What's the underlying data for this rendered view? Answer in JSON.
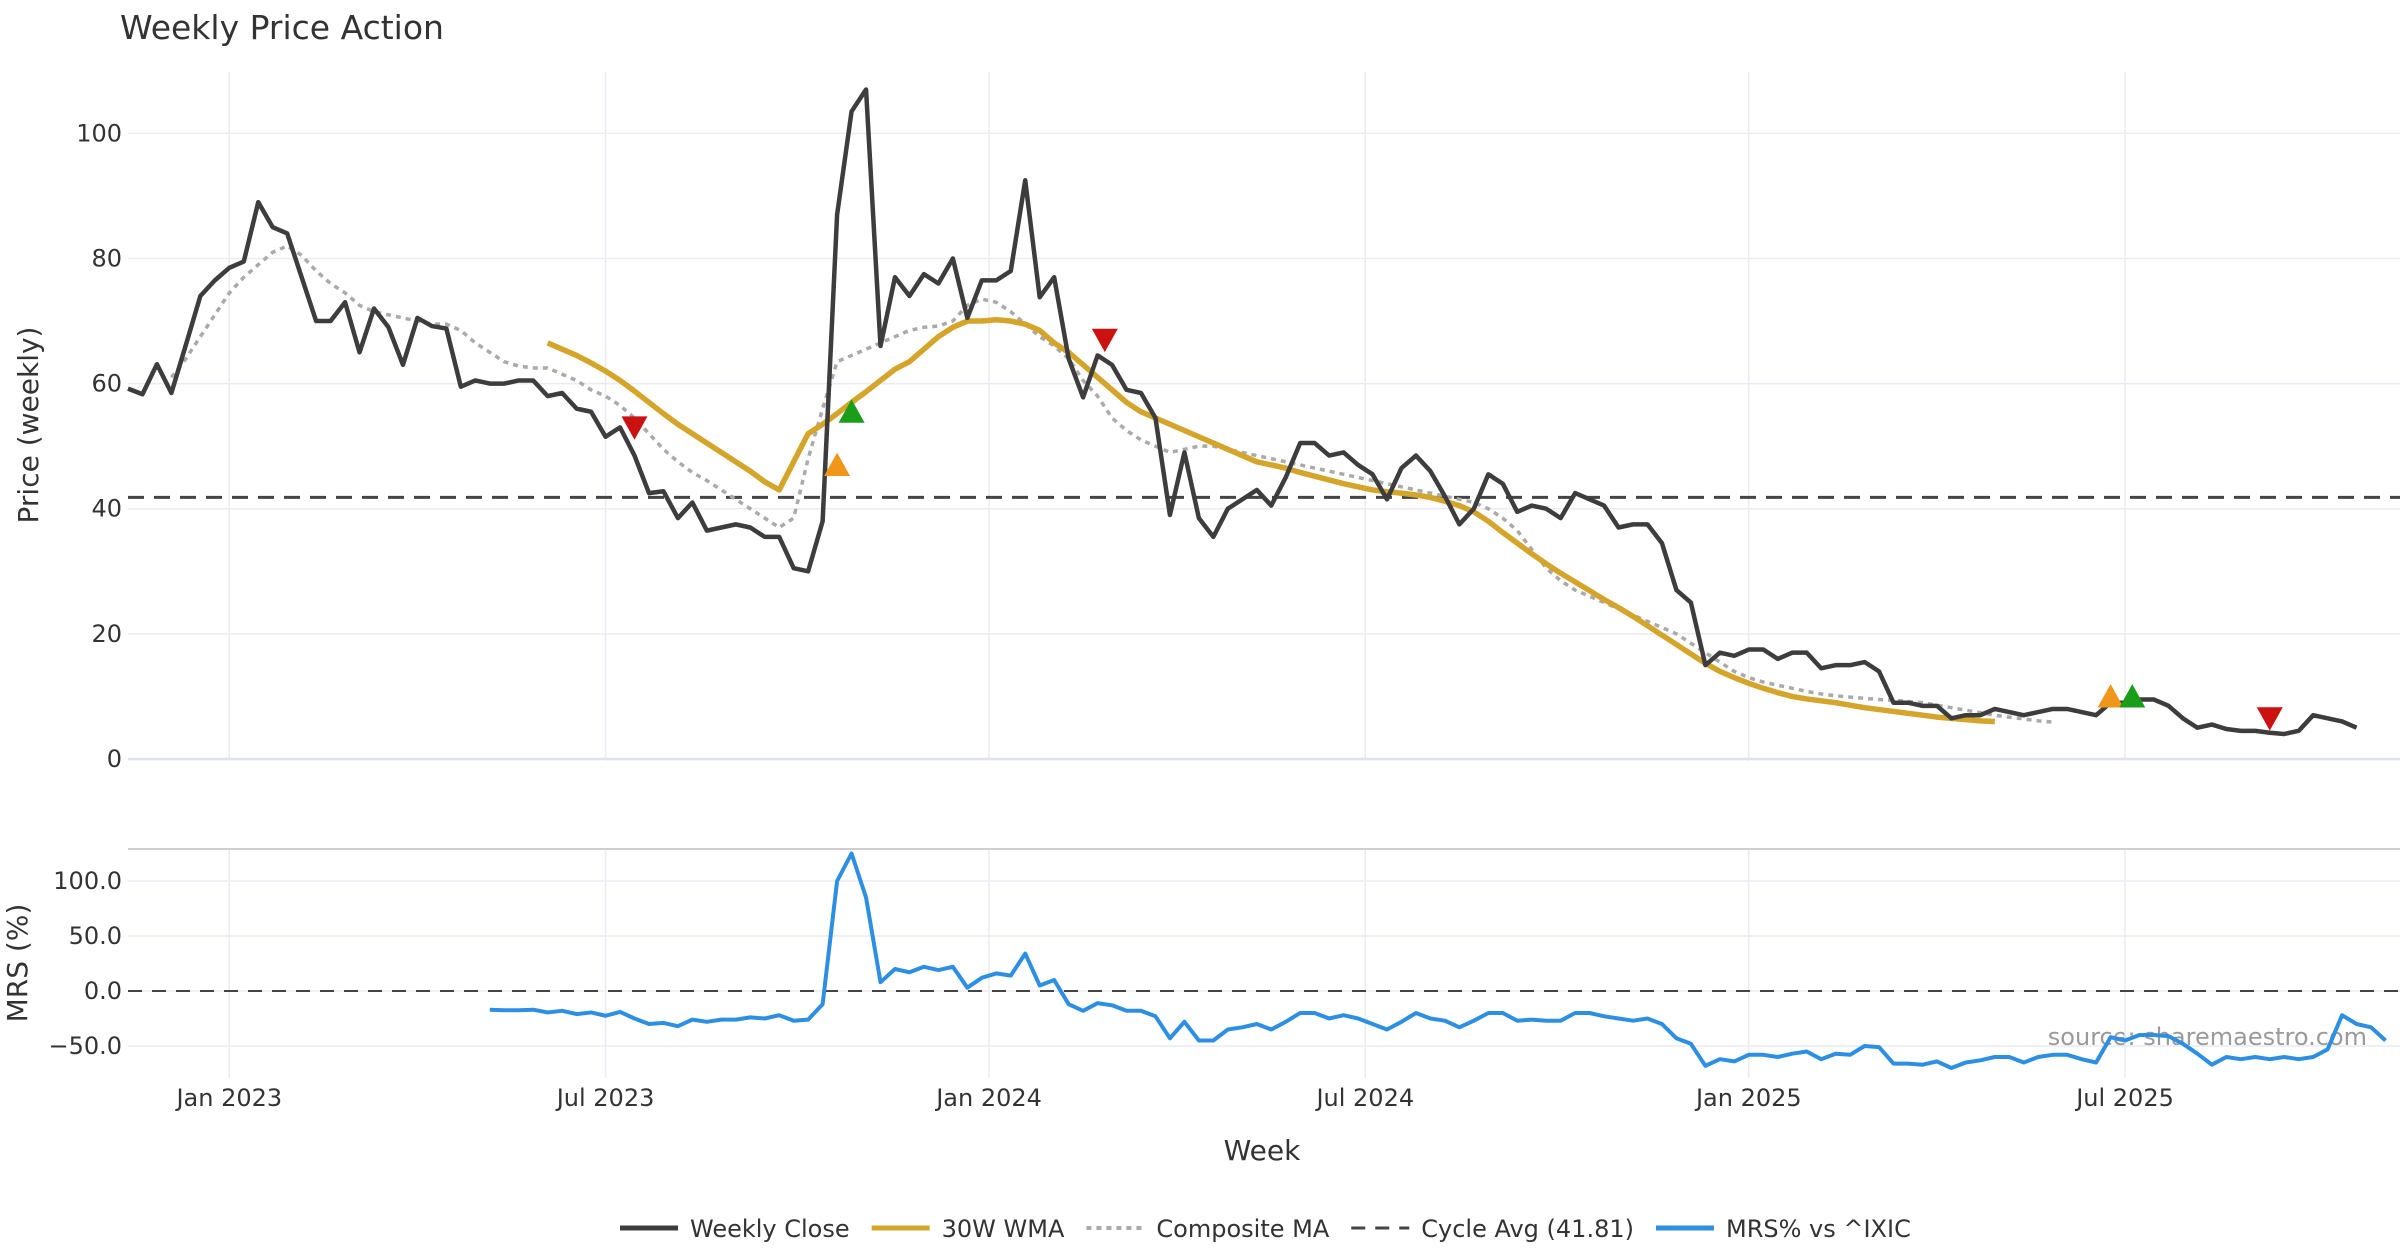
{
  "colors": {
    "close": "#3d3d3d",
    "wma": "#d4a52a",
    "composite": "#aaaaaa",
    "cycle": "#444444",
    "mrs": "#2d8fe3",
    "grid": "#e9ecf2",
    "sell": "#cc1111",
    "buy": "#1a9e1a",
    "warn": "#f0961a"
  },
  "chart_data": [
    {
      "type": "line",
      "title": "Weekly Price Action",
      "ylabel": "Price (weekly)",
      "xlabel": "Week",
      "ylim": [
        0,
        113
      ],
      "yticks": [
        0,
        20,
        40,
        60,
        80,
        100
      ],
      "x_ticks": [
        "Jan 2023",
        "Jul 2023",
        "Jan 2024",
        "Jul 2024",
        "Jan 2025",
        "Jul 2025"
      ],
      "x_tick_weeks": [
        7,
        33,
        59.5,
        85.5,
        112,
        138
      ],
      "cycle_avg": 41.81,
      "series": [
        {
          "name": "Weekly Close",
          "start_week": 0,
          "values": [
            59.2,
            58.3,
            63.1,
            58.5,
            66.2,
            74.0,
            76.5,
            78.5,
            79.5,
            89.0,
            85.0,
            84.0,
            77.0,
            70.0,
            70.0,
            73.0,
            65.0,
            72.0,
            69.0,
            63.0,
            70.5,
            69.2,
            68.8,
            59.5,
            60.5,
            60.0,
            60.0,
            60.5,
            60.5,
            58.0,
            58.5,
            56.0,
            55.5,
            51.5,
            53.0,
            48.5,
            42.5,
            42.8,
            38.5,
            41.0,
            36.5,
            37.0,
            37.5,
            37.0,
            35.5,
            35.5,
            30.5,
            30.0,
            38.0,
            87.0,
            103.5,
            107.0,
            66.0,
            77.0,
            74.0,
            77.5,
            76.0,
            80.0,
            70.5,
            76.5,
            76.5,
            78.0,
            92.5,
            73.8,
            77.0,
            64.0,
            57.8,
            64.5,
            63.0,
            59.0,
            58.5,
            54.5,
            39.0,
            49.0,
            38.5,
            35.5,
            40.0,
            41.5,
            43.0,
            40.5,
            45.0,
            50.5,
            50.5,
            48.5,
            49.0,
            47.0,
            45.5,
            41.5,
            46.5,
            48.5,
            46.0,
            42.0,
            37.5,
            40.0,
            45.5,
            44.0,
            39.5,
            40.5,
            40.0,
            38.5,
            42.5,
            41.5,
            40.5,
            37.0,
            37.5,
            37.5,
            34.5,
            27.0,
            25.0,
            15.0,
            17.0,
            16.5,
            17.5,
            17.5,
            16.0,
            17.0,
            17.0,
            14.5,
            15.0,
            15.0,
            15.5,
            14.0,
            9.0,
            9.0,
            8.5,
            8.5,
            6.5,
            7.0,
            7.0,
            8.0,
            7.5,
            7.0,
            7.5,
            8.0,
            8.0,
            7.5,
            7.0,
            9.0,
            9.0,
            9.5,
            9.5,
            8.5,
            6.5,
            5.0,
            5.5,
            4.8,
            4.5,
            4.5,
            4.2,
            4.0,
            4.5,
            7.0,
            6.5,
            6.0,
            5.0
          ]
        },
        {
          "name": "30W WMA",
          "start_week": 29,
          "values": [
            66.5,
            65.5,
            64.5,
            63.3,
            62.0,
            60.5,
            58.8,
            57.0,
            55.2,
            53.5,
            52.0,
            50.5,
            49.0,
            47.5,
            46.0,
            44.3,
            43.0,
            47.5,
            52.0,
            53.5,
            55.2,
            57.0,
            58.7,
            60.5,
            62.3,
            63.5,
            65.5,
            67.5,
            69.0,
            70.0,
            70.0,
            70.2,
            70.0,
            69.5,
            68.5,
            66.5,
            65.0,
            63.0,
            61.0,
            59.0,
            57.0,
            55.5,
            54.5,
            53.5,
            52.5,
            51.5,
            50.5,
            49.5,
            48.5,
            47.5,
            47.0,
            46.5,
            45.8,
            45.2,
            44.6,
            44.0,
            43.5,
            43.0,
            42.7,
            42.5,
            42.2,
            41.8,
            41.2,
            40.5,
            39.5,
            38.0,
            36.2,
            34.5,
            32.8,
            31.2,
            29.7,
            28.3,
            26.9,
            25.5,
            24.2,
            22.8,
            21.3,
            19.8,
            18.3,
            16.8,
            15.3,
            14.0,
            13.0,
            12.1,
            11.3,
            10.6,
            10.0,
            9.6,
            9.3,
            9.0,
            8.6,
            8.2,
            7.9,
            7.6,
            7.3,
            7.0,
            6.7,
            6.5,
            6.3,
            6.1,
            6.0
          ]
        },
        {
          "name": "Composite MA",
          "start_week": 3,
          "values": [
            61.0,
            64.0,
            67.5,
            71.0,
            74.5,
            77.0,
            79.0,
            81.0,
            82.0,
            80.5,
            78.0,
            76.0,
            74.5,
            72.5,
            71.5,
            71.0,
            70.5,
            70.0,
            69.5,
            69.5,
            68.5,
            66.5,
            65.0,
            63.5,
            62.8,
            62.5,
            62.5,
            61.5,
            60.5,
            59.0,
            58.0,
            56.5,
            54.5,
            52.0,
            49.5,
            47.5,
            45.8,
            44.5,
            43.0,
            41.5,
            40.0,
            38.5,
            37.0,
            38.5,
            48.0,
            56.0,
            63.5,
            64.5,
            65.5,
            66.5,
            67.5,
            68.5,
            69.0,
            69.2,
            70.0,
            72.5,
            73.5,
            73.0,
            71.5,
            69.5,
            67.5,
            66.0,
            64.0,
            60.5,
            58.0,
            54.5,
            52.5,
            51.0,
            50.0,
            49.0,
            49.5,
            50.0,
            50.0,
            49.5,
            49.0,
            48.5,
            48.0,
            47.5,
            47.0,
            46.5,
            46.0,
            45.5,
            45.0,
            44.5,
            44.0,
            43.5,
            43.0,
            42.5,
            42.0,
            41.5,
            41.0,
            40.0,
            38.5,
            36.5,
            33.5,
            30.5,
            28.5,
            27.0,
            26.0,
            25.0,
            24.0,
            23.0,
            22.0,
            21.0,
            20.0,
            18.5,
            17.0,
            15.5,
            14.0,
            13.0,
            12.3,
            11.8,
            11.3,
            10.8,
            10.4,
            10.1,
            9.9,
            9.7,
            9.5,
            9.4,
            9.2,
            9.0,
            8.6,
            8.2,
            7.8,
            7.4,
            7.0,
            6.7,
            6.4,
            6.1,
            5.9
          ]
        }
      ],
      "markers": [
        {
          "type": "sell",
          "week": 35,
          "value": 53.0
        },
        {
          "type": "warn",
          "week": 49,
          "value": 47.0
        },
        {
          "type": "buy",
          "week": 50,
          "value": 55.5
        },
        {
          "type": "sell",
          "week": 67.5,
          "value": 67.0
        },
        {
          "type": "warn",
          "week": 137,
          "value": 10.0
        },
        {
          "type": "buy",
          "week": 138.5,
          "value": 10.0
        },
        {
          "type": "sell",
          "week": 148,
          "value": 6.5
        }
      ]
    },
    {
      "type": "line",
      "ylabel": "MRS (%)",
      "ylim": [
        -70,
        130
      ],
      "yticks": [
        -50.0,
        0.0,
        50.0,
        100.0
      ],
      "ytick_labels": [
        "−50.0",
        "0.0",
        "50.0",
        "100.0"
      ],
      "series": [
        {
          "name": "MRS% vs ^IXIC",
          "start_week": 25,
          "values": [
            -17,
            -17.5,
            -17.5,
            -17,
            -19.5,
            -18,
            -21,
            -19.5,
            -22.5,
            -19,
            -25,
            -30,
            -29,
            -32,
            -26,
            -28,
            -26,
            -26,
            -24,
            -25,
            -22,
            -27,
            -26,
            -12,
            100,
            125,
            85,
            8,
            20,
            17,
            22,
            19,
            22,
            3,
            12,
            16,
            14,
            34,
            5,
            10,
            -12,
            -18,
            -11,
            -13,
            -18,
            -18,
            -23,
            -43,
            -28,
            -45,
            -45,
            -35,
            -33,
            -30,
            -35,
            -28,
            -20,
            -20,
            -25,
            -22,
            -25,
            -30,
            -35,
            -28,
            -20,
            -25,
            -27,
            -33,
            -27,
            -20,
            -20,
            -27,
            -26,
            -27,
            -27,
            -20,
            -20,
            -23,
            -25,
            -27,
            -25,
            -30,
            -43,
            -48,
            -68,
            -62,
            -64,
            -58,
            -58,
            -60,
            -57,
            -55,
            -62,
            -57,
            -58,
            -50,
            -51,
            -66,
            -66,
            -67,
            -64,
            -70,
            -65,
            -63,
            -60,
            -60,
            -65,
            -60,
            -58,
            -58,
            -62,
            -65,
            -42,
            -45,
            -40,
            -40,
            -41,
            -48,
            -57,
            -67,
            -60,
            -62,
            -60,
            -62,
            -60,
            -62,
            -60,
            -53,
            -22,
            -30,
            -33,
            -45
          ]
        }
      ]
    }
  ],
  "legend": [
    {
      "label": "Weekly Close",
      "style": "solid",
      "color_key": "close"
    },
    {
      "label": "30W WMA",
      "style": "solid",
      "color_key": "wma"
    },
    {
      "label": "Composite MA",
      "style": "dotted",
      "color_key": "composite"
    },
    {
      "label": "Cycle Avg (41.81)",
      "style": "dashed",
      "color_key": "cycle"
    },
    {
      "label": "MRS% vs ^IXIC",
      "style": "solid",
      "color_key": "mrs"
    }
  ],
  "source": "source: sharemaestro.com"
}
